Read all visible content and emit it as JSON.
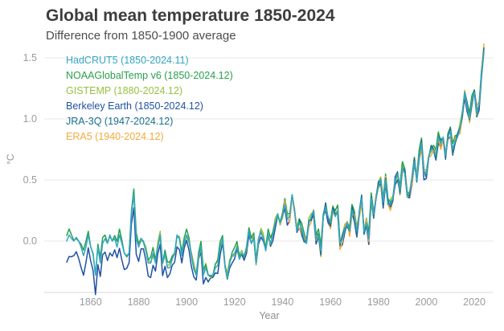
{
  "title": "Global mean temperature 1850-2024",
  "subtitle": "Difference from 1850-1900 average",
  "chart_data": {
    "type": "line",
    "title": "Global mean temperature 1850-2024",
    "subtitle": "Difference from 1850-1900 average",
    "x_label": "Year",
    "y_label": "°C",
    "x_ticks": [
      1860,
      1880,
      1900,
      1920,
      1940,
      1960,
      1980,
      2000,
      2020
    ],
    "y_ticks": [
      0.0,
      0.5,
      1.0,
      1.5
    ],
    "xlim": [
      1850,
      2026
    ],
    "ylim": [
      -0.4,
      1.65
    ],
    "grid": "horizontal",
    "legend_position": "top-left-inside",
    "base_values_start_year": 1850,
    "base_values": [
      0.0,
      0.05,
      0.02,
      0.0,
      0.03,
      0.0,
      -0.05,
      -0.12,
      -0.05,
      0.05,
      -0.05,
      -0.1,
      -0.28,
      -0.05,
      -0.18,
      -0.02,
      0.02,
      -0.02,
      0.05,
      0.0,
      0.02,
      -0.05,
      0.05,
      -0.02,
      -0.1,
      -0.12,
      -0.1,
      0.22,
      0.38,
      0.02,
      -0.05,
      0.02,
      0.0,
      -0.08,
      -0.18,
      -0.18,
      -0.1,
      -0.18,
      -0.05,
      0.05,
      -0.18,
      -0.1,
      -0.22,
      -0.22,
      -0.15,
      -0.1,
      0.05,
      0.02,
      -0.12,
      -0.02,
      0.05,
      0.0,
      -0.12,
      -0.22,
      -0.28,
      -0.12,
      -0.05,
      -0.28,
      -0.22,
      -0.28,
      -0.28,
      -0.28,
      -0.22,
      -0.2,
      -0.05,
      0.02,
      -0.2,
      -0.3,
      -0.18,
      -0.12,
      -0.1,
      -0.05,
      -0.15,
      -0.1,
      -0.12,
      -0.05,
      0.08,
      -0.02,
      0.02,
      -0.18,
      0.02,
      0.08,
      0.02,
      -0.08,
      0.05,
      -0.02,
      0.05,
      0.15,
      0.22,
      0.15,
      0.2,
      0.3,
      0.18,
      0.2,
      0.38,
      0.25,
      0.08,
      0.15,
      0.1,
      0.02,
      -0.02,
      0.15,
      0.2,
      0.25,
      0.02,
      0.05,
      -0.08,
      0.2,
      0.28,
      0.2,
      0.15,
      0.25,
      0.2,
      0.25,
      -0.02,
      0.02,
      0.1,
      0.15,
      0.08,
      0.25,
      0.2,
      0.08,
      0.22,
      0.35,
      0.08,
      0.15,
      0.02,
      0.35,
      0.22,
      0.35,
      0.45,
      0.5,
      0.32,
      0.5,
      0.3,
      0.3,
      0.35,
      0.5,
      0.55,
      0.42,
      0.6,
      0.55,
      0.38,
      0.4,
      0.5,
      0.65,
      0.5,
      0.7,
      0.8,
      0.55,
      0.55,
      0.7,
      0.75,
      0.75,
      0.7,
      0.85,
      0.8,
      0.85,
      0.7,
      0.85,
      0.9,
      0.75,
      0.82,
      0.85,
      0.92,
      1.05,
      1.22,
      1.1,
      1.0,
      1.15,
      1.22,
      1.05,
      1.12,
      1.38,
      1.55
    ],
    "series": [
      {
        "name": "hadcrut5",
        "label": "HadCRUT5 (1850-2024.11)",
        "color": "#33A6C4",
        "start_year": 1850,
        "end": "2024.11",
        "offset": 0,
        "amp": 0,
        "freq": 1,
        "phase": 0,
        "z": 6
      },
      {
        "name": "noaaglobaltemp",
        "label": "NOAAGlobalTemp v6 (1850-2024.12)",
        "color": "#28A04C",
        "start_year": 1850,
        "end": "2024.12",
        "offset": 0.02,
        "amp": 0.03,
        "freq": 0.9,
        "phase": 1,
        "z": 3
      },
      {
        "name": "gistemp",
        "label": "GISTEMP (1880-2024.12)",
        "color": "#96C13E",
        "start_year": 1880,
        "end": "2024.12",
        "offset": 0.01,
        "amp": 0.03,
        "freq": 1.3,
        "phase": 2,
        "z": 2
      },
      {
        "name": "berkeley-earth",
        "label": "Berkeley Earth (1850-2024.12)",
        "color": "#2152A3",
        "start_year": 1850,
        "end": "2024.12",
        "offset": -0.02,
        "amp": 0.03,
        "freq": 1.1,
        "phase": 4,
        "early_offset": -0.13,
        "z": 1
      },
      {
        "name": "jra-3q",
        "label": "JRA-3Q (1947-2024.12)",
        "color": "#1B6F8E",
        "start_year": 1947,
        "end": "2024.12",
        "offset": 0.0,
        "amp": 0.035,
        "freq": 1.7,
        "phase": 0.5,
        "z": 5
      },
      {
        "name": "era5",
        "label": "ERA5 (1940-2024.12)",
        "color": "#F2A93B",
        "start_year": 1940,
        "end": "2024.12",
        "offset": -0.01,
        "amp": 0.04,
        "freq": 1.5,
        "phase": 3,
        "late_boost": 0.07,
        "z": 4
      }
    ],
    "colors": {
      "grid": "#e7e7e7",
      "axis": "#d9d9d9",
      "tick_text": "#9b9b9b",
      "title_text": "#3d3d3d",
      "subtitle_text": "#4c4c4c"
    }
  }
}
